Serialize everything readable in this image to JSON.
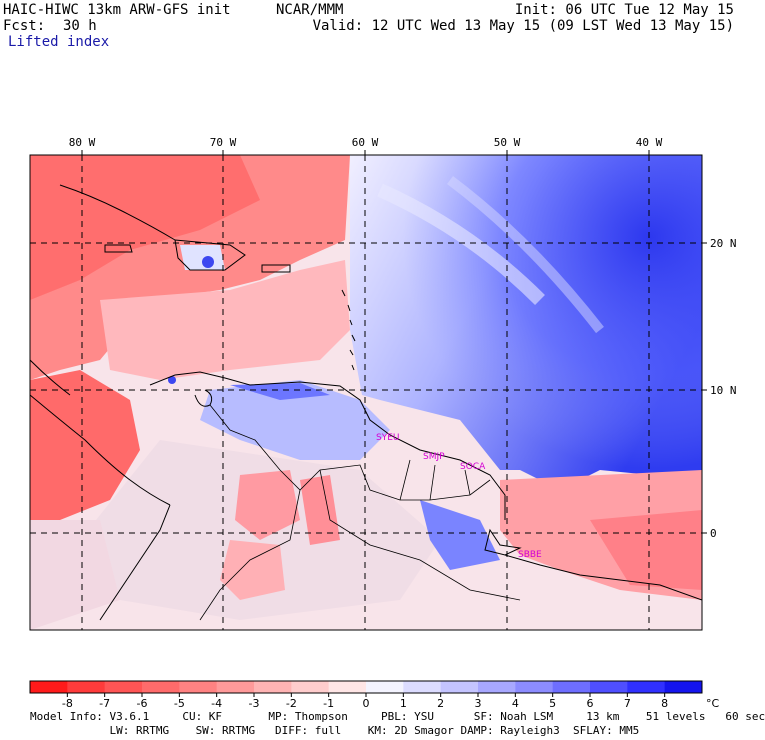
{
  "header": {
    "model": "HAIC-HIWC 13km ARW-GFS init",
    "agency": "NCAR/MMM",
    "init": "Init: 06 UTC Tue 12 May 15",
    "fcst_label": "Fcst:",
    "fcst_value": "30 h",
    "valid": "Valid: 12 UTC Wed 13 May 15 (09 LST Wed 13 May 15)",
    "field": "Lifted index"
  },
  "map": {
    "lon_labels": [
      "80 W",
      "70 W",
      "60 W",
      "50 W",
      "40 W"
    ],
    "lat_labels": [
      "20 N",
      "10 N",
      "0"
    ],
    "stations": [
      "SYEU",
      "SMJP",
      "SOCA",
      "SBBE"
    ]
  },
  "colorbar": {
    "labels": [
      "-8",
      "-7",
      "-6",
      "-5",
      "-4",
      "-3",
      "-2",
      "-1",
      "0",
      "1",
      "2",
      "3",
      "4",
      "5",
      "6",
      "7",
      "8"
    ],
    "unit": "°C",
    "colors": [
      "#ff1a1a",
      "#ff3b3b",
      "#ff5555",
      "#ff6b6b",
      "#ff8282",
      "#ff9a9a",
      "#ffb4b4",
      "#ffcdcd",
      "#ffe6e6",
      "#f4f4ff",
      "#dcdcff",
      "#c4c4ff",
      "#a8a8ff",
      "#8c8cff",
      "#6e6eff",
      "#4f4fff",
      "#3030ff",
      "#1414ee"
    ]
  },
  "footer": {
    "line1": "Model Info: V3.6.1     CU: KF       MP: Thompson     PBL: YSU      SF: Noah LSM     13 km    51 levels   60 sec",
    "line2": "            LW: RRTMG    SW: RRTMG   DIFF: full    KM: 2D Smagor DAMP: Rayleigh3  SFLAY: MM5"
  }
}
